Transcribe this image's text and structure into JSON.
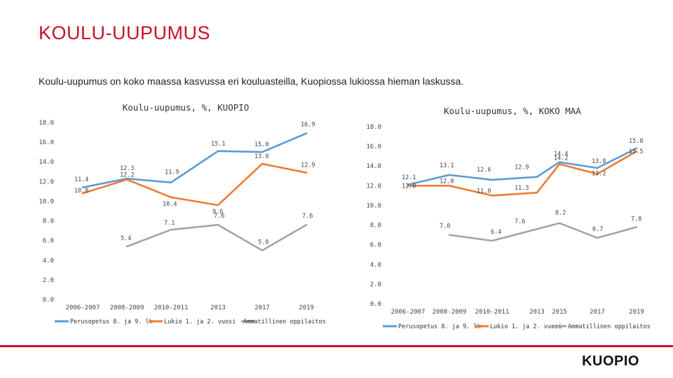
{
  "slide": {
    "title": "KOULU-UUPUMUS",
    "subtitle": "Koulu-uupumus on koko maassa kasvussa eri kouluasteilla, Kuopiossa lukiossa hieman laskussa.",
    "logo": "KUOPIO"
  },
  "colors": {
    "accent": "#c8102e",
    "series": [
      "#5b9bd5",
      "#ed7d31",
      "#a5a5a5"
    ]
  },
  "chart_data": [
    {
      "type": "line",
      "title": "Koulu-uupumus, %, KUOPIO",
      "categories": [
        "2006-2007",
        "2008-2009",
        "2010-2011",
        "2013",
        "2017",
        "2019"
      ],
      "ylim": [
        0,
        18
      ],
      "yticks": [
        "0.0",
        "2.0",
        "4.0",
        "6.0",
        "8.0",
        "10.0",
        "12.0",
        "14.0",
        "16.0",
        "18.0"
      ],
      "series": [
        {
          "name": "Perusopetus 8. ja 9. lk",
          "values": [
            11.4,
            12.3,
            11.9,
            15.1,
            15.0,
            16.9
          ],
          "labels": [
            "11.4",
            "12.3",
            "11.9",
            "15.1",
            "15.0",
            "16.9"
          ]
        },
        {
          "name": "Lukio 1. ja 2. vuosi",
          "values": [
            10.8,
            12.2,
            10.4,
            9.6,
            13.8,
            12.9
          ],
          "labels": [
            "10.8",
            "12.2",
            "10.4",
            "9.6",
            "13.8",
            "12.9"
          ]
        },
        {
          "name": "Ammatillinen oppilaitos",
          "values": [
            null,
            5.4,
            7.1,
            7.6,
            5.0,
            7.6
          ],
          "labels": [
            "",
            "5.4",
            "7.1",
            "7.6",
            "5.0",
            "7.6"
          ]
        }
      ]
    },
    {
      "type": "line",
      "title": "Koulu-uupumus, %, KOKO MAA",
      "categories": [
        "2006-2007",
        "2008-2009",
        "2010-2011",
        "2013",
        "2015",
        "2017",
        "2019"
      ],
      "ylim": [
        0,
        18
      ],
      "yticks": [
        "0.0",
        "2.0",
        "4.0",
        "6.0",
        "8.0",
        "10.0",
        "12.0",
        "14.0",
        "16.0",
        "18.0"
      ],
      "series": [
        {
          "name": "Perusopetus 8. ja 9. lk",
          "values": [
            12.1,
            13.1,
            12.6,
            12.9,
            14.4,
            13.8,
            15.8
          ],
          "labels": [
            "12.1",
            "13.1",
            "12.6",
            "12.9",
            "14.4",
            "13.8",
            "15.8"
          ]
        },
        {
          "name": "Lukio 1. ja 2. vuosi",
          "values": [
            12.0,
            12.0,
            11.0,
            11.3,
            14.2,
            13.2,
            15.5
          ],
          "labels": [
            "12.0",
            "12.0",
            "11.0",
            "11.3",
            "14.2",
            "13.2",
            "15.5"
          ]
        },
        {
          "name": "Ammatillinen oppilaitos",
          "values": [
            null,
            7.0,
            6.4,
            7.6,
            8.2,
            6.7,
            7.8
          ],
          "labels": [
            "",
            "7.0",
            "6.4",
            "7.6",
            "8.2",
            "6.7",
            "7.8"
          ]
        }
      ]
    }
  ]
}
